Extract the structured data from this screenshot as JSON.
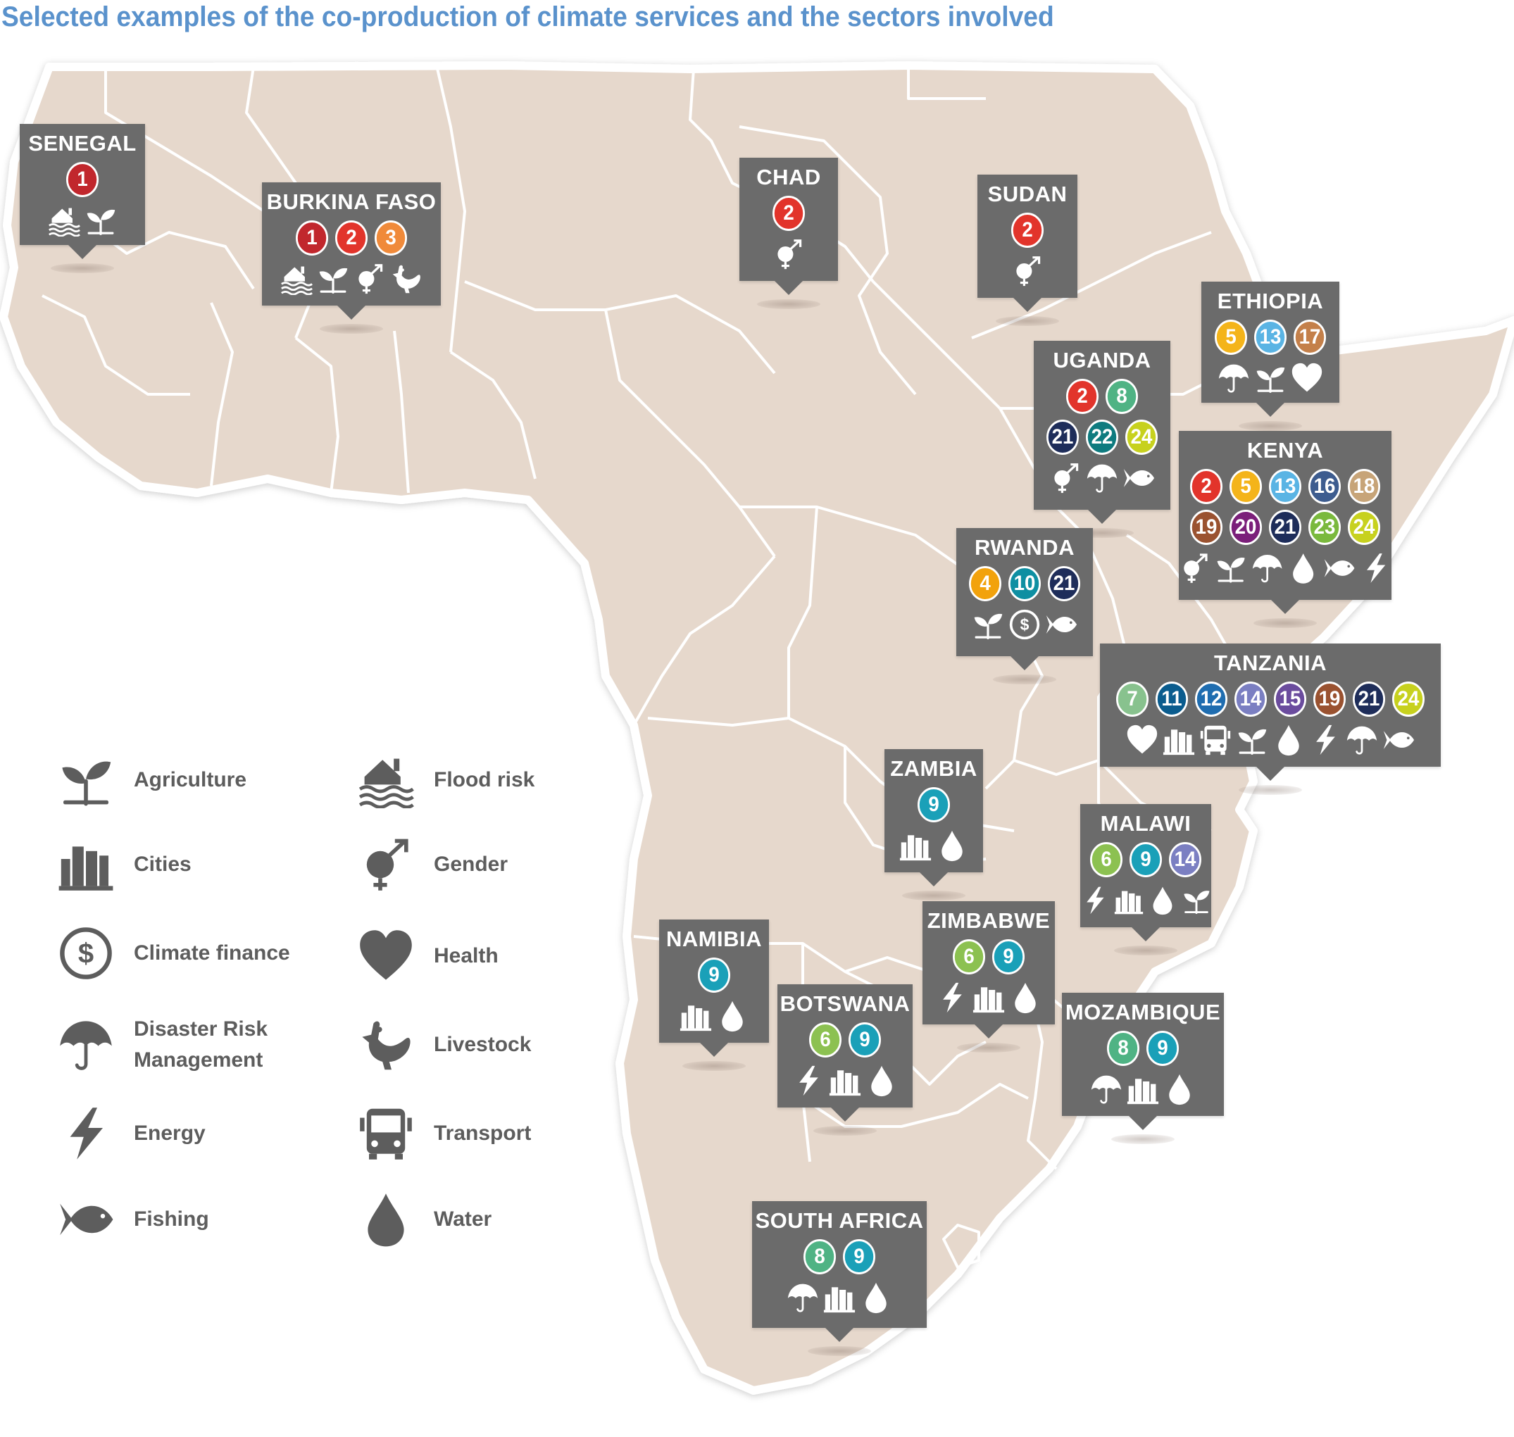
{
  "title": "Selected examples of the co-production of climate services and the sectors involved",
  "colors": {
    "land": "#e6d8cc",
    "border": "#ffffff",
    "card": "#6b6b6b",
    "legend_icon": "#5d5d5d",
    "legend_text": "#5d5d5d",
    "title": "#5a92cc"
  },
  "number_colors": {
    "1": "#c1272d",
    "2": "#e2342b",
    "3": "#f08a3a",
    "4": "#f2a20c",
    "5": "#f4b41a",
    "6": "#8cc151",
    "7": "#88c28e",
    "8": "#4fb384",
    "9": "#1aa0b8",
    "10": "#0e8fa2",
    "11": "#0a5c8e",
    "12": "#1f6db0",
    "13": "#5ab4e4",
    "14": "#7b7fc2",
    "15": "#6b4c9e",
    "16": "#3d5c8f",
    "17": "#c4804a",
    "18": "#c7a478",
    "19": "#9a5230",
    "20": "#7b1f7a",
    "21": "#1e2d5a",
    "22": "#0e7b7f",
    "23": "#7ab93d",
    "24": "#c7d11e"
  },
  "legend": [
    {
      "icon": "agriculture-icon",
      "label": "Agriculture"
    },
    {
      "icon": "cities-icon",
      "label": "Cities"
    },
    {
      "icon": "climate-finance-icon",
      "label": "Climate finance"
    },
    {
      "icon": "disaster-risk-icon",
      "label": "Disaster Risk Management"
    },
    {
      "icon": "energy-icon",
      "label": "Energy"
    },
    {
      "icon": "fishing-icon",
      "label": "Fishing"
    },
    {
      "icon": "flood-risk-icon",
      "label": "Flood risk"
    },
    {
      "icon": "gender-icon",
      "label": "Gender"
    },
    {
      "icon": "health-icon",
      "label": "Health"
    },
    {
      "icon": "livestock-icon",
      "label": "Livestock"
    },
    {
      "icon": "transport-icon",
      "label": "Transport"
    },
    {
      "icon": "water-icon",
      "label": "Water"
    }
  ],
  "countries": [
    {
      "name": "SENEGAL",
      "numbers": [
        [
          "1"
        ]
      ],
      "sectors": [
        "flood",
        "agriculture"
      ]
    },
    {
      "name": "BURKINA FASO",
      "numbers": [
        [
          "1",
          "2",
          "3"
        ]
      ],
      "sectors": [
        "flood",
        "agriculture",
        "gender",
        "livestock"
      ]
    },
    {
      "name": "CHAD",
      "numbers": [
        [
          "2"
        ]
      ],
      "sectors": [
        "gender"
      ]
    },
    {
      "name": "SUDAN",
      "numbers": [
        [
          "2"
        ]
      ],
      "sectors": [
        "gender"
      ]
    },
    {
      "name": "ETHIOPIA",
      "numbers": [
        [
          "5",
          "13",
          "17"
        ]
      ],
      "sectors": [
        "drm",
        "agriculture",
        "health"
      ]
    },
    {
      "name": "UGANDA",
      "numbers": [
        [
          "2",
          "8"
        ],
        [
          "21",
          "22",
          "24"
        ]
      ],
      "sectors": [
        "gender",
        "drm",
        "fishing"
      ]
    },
    {
      "name": "KENYA",
      "numbers": [
        [
          "2",
          "5",
          "13",
          "16",
          "18"
        ],
        [
          "19",
          "20",
          "21",
          "23",
          "24"
        ]
      ],
      "sectors": [
        "gender",
        "agriculture",
        "drm",
        "water",
        "fishing",
        "energy"
      ]
    },
    {
      "name": "RWANDA",
      "numbers": [
        [
          "4",
          "10",
          "21"
        ]
      ],
      "sectors": [
        "agriculture",
        "finance",
        "fishing"
      ]
    },
    {
      "name": "TANZANIA",
      "numbers": [
        [
          "7",
          "11",
          "12",
          "14",
          "15",
          "19",
          "21",
          "24"
        ]
      ],
      "sectors": [
        "health",
        "cities",
        "transport",
        "agriculture",
        "water",
        "energy",
        "drm",
        "fishing"
      ]
    },
    {
      "name": "ZAMBIA",
      "numbers": [
        [
          "9"
        ]
      ],
      "sectors": [
        "cities",
        "water"
      ]
    },
    {
      "name": "MALAWI",
      "numbers": [
        [
          "6",
          "9",
          "14"
        ]
      ],
      "sectors": [
        "energy",
        "cities",
        "water",
        "agriculture"
      ]
    },
    {
      "name": "NAMIBIA",
      "numbers": [
        [
          "9"
        ]
      ],
      "sectors": [
        "cities",
        "water"
      ]
    },
    {
      "name": "ZIMBABWE",
      "numbers": [
        [
          "6",
          "9"
        ]
      ],
      "sectors": [
        "energy",
        "cities",
        "water"
      ]
    },
    {
      "name": "BOTSWANA",
      "numbers": [
        [
          "6",
          "9"
        ]
      ],
      "sectors": [
        "energy",
        "cities",
        "water"
      ]
    },
    {
      "name": "MOZAMBIQUE",
      "numbers": [
        [
          "8",
          "9"
        ]
      ],
      "sectors": [
        "drm",
        "cities",
        "water"
      ]
    },
    {
      "name": "SOUTH AFRICA",
      "numbers": [
        [
          "8",
          "9"
        ]
      ],
      "sectors": [
        "drm",
        "cities",
        "water"
      ]
    }
  ]
}
